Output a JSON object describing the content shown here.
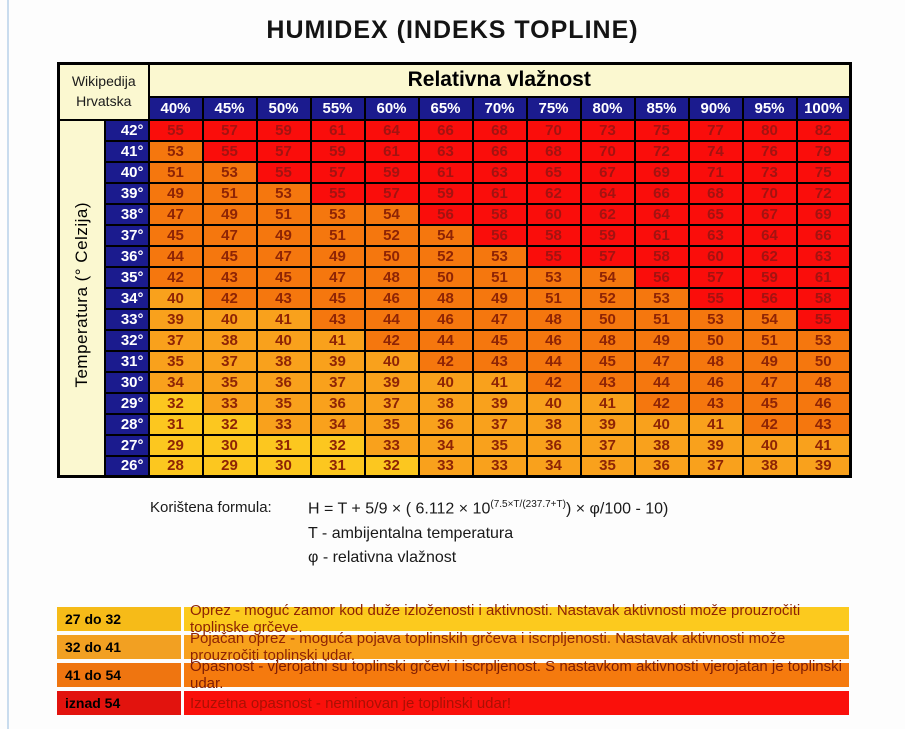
{
  "page": {
    "title": "HUMIDEX (INDEKS TOPLINE)"
  },
  "table": {
    "corner_line1": "Wikipedija",
    "corner_line2": "Hrvatska",
    "group_header": "Relativna vlažnost",
    "side_header": "Temperatura (° Celzija)",
    "humidity_labels": [
      "40%",
      "45%",
      "50%",
      "55%",
      "60%",
      "65%",
      "70%",
      "75%",
      "80%",
      "85%",
      "90%",
      "95%",
      "100%"
    ],
    "temperature_labels": [
      "42°",
      "41°",
      "40°",
      "39°",
      "38°",
      "37°",
      "36°",
      "35°",
      "34°",
      "33°",
      "32°",
      "31°",
      "30°",
      "29°",
      "28°",
      "27°",
      "26°"
    ],
    "values": [
      [
        55,
        57,
        59,
        61,
        64,
        66,
        68,
        70,
        73,
        75,
        77,
        80,
        82
      ],
      [
        53,
        55,
        57,
        59,
        61,
        63,
        66,
        68,
        70,
        72,
        74,
        76,
        79
      ],
      [
        51,
        53,
        55,
        57,
        59,
        61,
        63,
        65,
        67,
        69,
        71,
        73,
        75
      ],
      [
        49,
        51,
        53,
        55,
        57,
        59,
        61,
        62,
        64,
        66,
        68,
        70,
        72
      ],
      [
        47,
        49,
        51,
        53,
        54,
        56,
        58,
        60,
        62,
        64,
        65,
        67,
        69
      ],
      [
        45,
        47,
        49,
        51,
        52,
        54,
        56,
        58,
        59,
        61,
        63,
        64,
        66
      ],
      [
        44,
        45,
        47,
        49,
        50,
        52,
        53,
        55,
        57,
        58,
        60,
        62,
        63
      ],
      [
        42,
        43,
        45,
        47,
        48,
        50,
        51,
        53,
        54,
        56,
        57,
        59,
        61
      ],
      [
        40,
        42,
        43,
        45,
        46,
        48,
        49,
        51,
        52,
        53,
        55,
        56,
        58
      ],
      [
        39,
        40,
        41,
        43,
        44,
        46,
        47,
        48,
        50,
        51,
        53,
        54,
        55
      ],
      [
        37,
        38,
        40,
        41,
        42,
        44,
        45,
        46,
        48,
        49,
        50,
        51,
        53
      ],
      [
        35,
        37,
        38,
        39,
        40,
        42,
        43,
        44,
        45,
        47,
        48,
        49,
        50
      ],
      [
        34,
        35,
        36,
        37,
        39,
        40,
        41,
        42,
        43,
        44,
        46,
        47,
        48
      ],
      [
        32,
        33,
        35,
        36,
        37,
        38,
        39,
        40,
        41,
        42,
        43,
        45,
        46
      ],
      [
        31,
        32,
        33,
        34,
        35,
        36,
        37,
        38,
        39,
        40,
        41,
        42,
        43
      ],
      [
        29,
        30,
        31,
        32,
        33,
        34,
        35,
        36,
        37,
        38,
        39,
        40,
        41
      ],
      [
        28,
        29,
        30,
        31,
        32,
        33,
        33,
        34,
        35,
        36,
        37,
        38,
        39
      ]
    ],
    "bands": [
      {
        "name": "extreme-danger",
        "min": 55,
        "bg": "#fa0d0b",
        "text": "#a31311"
      },
      {
        "name": "danger",
        "min": 42,
        "bg": "#f5770e",
        "text": "#8e2405"
      },
      {
        "name": "great-caution",
        "min": 33,
        "bg": "#f9a11c",
        "text": "#8e2405"
      },
      {
        "name": "caution",
        "min": 0,
        "bg": "#fcc71f",
        "text": "#8e2405"
      }
    ]
  },
  "formula": {
    "label": "Korištena formula:",
    "expr_prefix": "H = T + 5/9 × ( 6.112 × 10",
    "expr_sup": "(7.5×T/(237.7+T)",
    "expr_suffix": ") × φ/100 - 10)",
    "line2": "T - ambijentalna temperatura",
    "line3": "φ - relativna vlažnost"
  },
  "legend": [
    {
      "range": "27 do 32",
      "label_bg": "#f6bb18",
      "row_bg": "#fcca1e",
      "text_color": "#8e2405",
      "text": "Oprez - moguć zamor kod duže izloženosti i aktivnosti. Nastavak aktivnosti može prouzročiti toplinske grčeve."
    },
    {
      "range": "32 do 41",
      "label_bg": "#f2a022",
      "row_bg": "#f8a11c",
      "text_color": "#8e2405",
      "text": "Pojačan oprez - moguća pojava toplinskih grčeva i iscrpljenosti. Nastavak aktivnosti može prouzročiti toplinski udar."
    },
    {
      "range": "41 do 54",
      "label_bg": "#ef7510",
      "row_bg": "#f57a0e",
      "text_color": "#7e1d05",
      "text": "Opasnost - vjerojatni su toplinski grčevi i iscrpljenost. S nastavkom aktivnosti vjerojatan je toplinski udar."
    },
    {
      "range": "iznad 54",
      "label_bg": "#e2130e",
      "row_bg": "#fa100b",
      "text_color": "#aa1004",
      "text": "Izuzetna opasnost - neminovan je toplinski udar!"
    }
  ],
  "colors": {
    "header_navy": "#1b1b8e",
    "cream": "#fbf8d0",
    "grid_border": "#000000",
    "page_bg": "#fdfdfd",
    "edge_strip": "#c9dcee"
  },
  "chart_data": {
    "type": "heatmap",
    "title": "HUMIDEX (INDEKS TOPLINE)",
    "xlabel": "Relativna vlažnost",
    "ylabel": "Temperatura (° Celzija)",
    "x": [
      40,
      45,
      50,
      55,
      60,
      65,
      70,
      75,
      80,
      85,
      90,
      95,
      100
    ],
    "y": [
      42,
      41,
      40,
      39,
      38,
      37,
      36,
      35,
      34,
      33,
      32,
      31,
      30,
      29,
      28,
      27,
      26
    ],
    "values": [
      [
        55,
        57,
        59,
        61,
        64,
        66,
        68,
        70,
        73,
        75,
        77,
        80,
        82
      ],
      [
        53,
        55,
        57,
        59,
        61,
        63,
        66,
        68,
        70,
        72,
        74,
        76,
        79
      ],
      [
        51,
        53,
        55,
        57,
        59,
        61,
        63,
        65,
        67,
        69,
        71,
        73,
        75
      ],
      [
        49,
        51,
        53,
        55,
        57,
        59,
        61,
        62,
        64,
        66,
        68,
        70,
        72
      ],
      [
        47,
        49,
        51,
        53,
        54,
        56,
        58,
        60,
        62,
        64,
        65,
        67,
        69
      ],
      [
        45,
        47,
        49,
        51,
        52,
        54,
        56,
        58,
        59,
        61,
        63,
        64,
        66
      ],
      [
        44,
        45,
        47,
        49,
        50,
        52,
        53,
        55,
        57,
        58,
        60,
        62,
        63
      ],
      [
        42,
        43,
        45,
        47,
        48,
        50,
        51,
        53,
        54,
        56,
        57,
        59,
        61
      ],
      [
        40,
        42,
        43,
        45,
        46,
        48,
        49,
        51,
        52,
        53,
        55,
        56,
        58
      ],
      [
        39,
        40,
        41,
        43,
        44,
        46,
        47,
        48,
        50,
        51,
        53,
        54,
        55
      ],
      [
        37,
        38,
        40,
        41,
        42,
        44,
        45,
        46,
        48,
        49,
        50,
        51,
        53
      ],
      [
        35,
        37,
        38,
        39,
        40,
        42,
        43,
        44,
        45,
        47,
        48,
        49,
        50
      ],
      [
        34,
        35,
        36,
        37,
        39,
        40,
        41,
        42,
        43,
        44,
        46,
        47,
        48
      ],
      [
        32,
        33,
        35,
        36,
        37,
        38,
        39,
        40,
        41,
        42,
        43,
        45,
        46
      ],
      [
        31,
        32,
        33,
        34,
        35,
        36,
        37,
        38,
        39,
        40,
        41,
        42,
        43
      ],
      [
        29,
        30,
        31,
        32,
        33,
        34,
        35,
        36,
        37,
        38,
        39,
        40,
        41
      ],
      [
        28,
        29,
        30,
        31,
        32,
        33,
        33,
        34,
        35,
        36,
        37,
        38,
        39
      ]
    ],
    "color_bands": [
      {
        "range": "27 do 32",
        "color": "#fcc71f"
      },
      {
        "range": "32 do 41",
        "color": "#f9a11c"
      },
      {
        "range": "41 do 54",
        "color": "#f5770e"
      },
      {
        "range": "iznad 54",
        "color": "#fa0d0b"
      }
    ],
    "legend_position": "bottom",
    "grid": true
  }
}
